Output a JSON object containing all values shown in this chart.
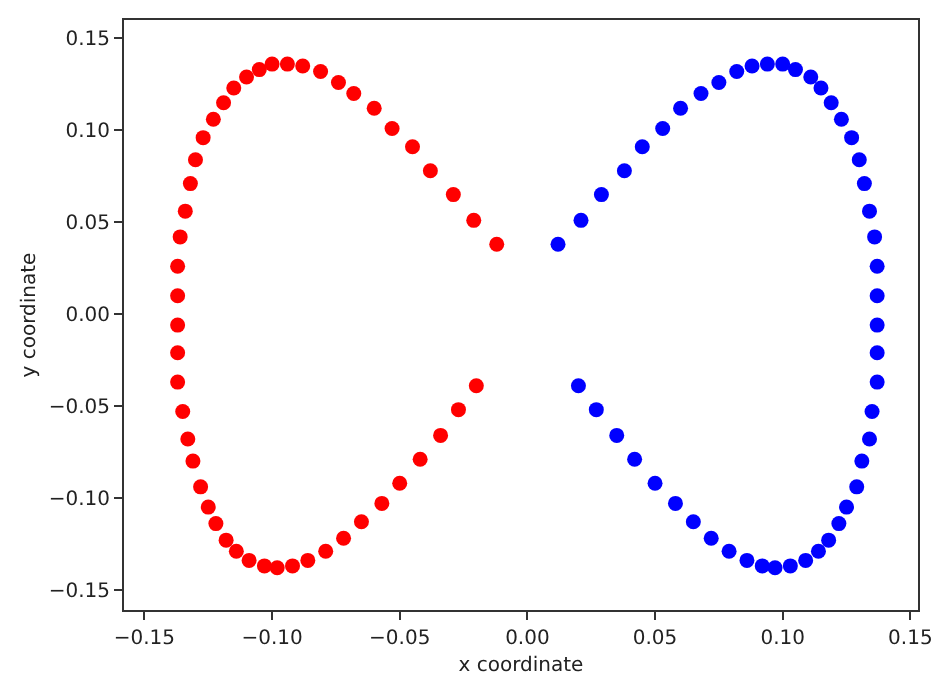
{
  "chart_data": {
    "type": "scatter",
    "xlabel": "x coordinate",
    "ylabel": "y coordinate",
    "marker": "circle",
    "xlim": [
      -0.158,
      0.153
    ],
    "ylim": [
      -0.161,
      0.16
    ],
    "xticks": [
      {
        "value": -0.15,
        "label": "−0.15"
      },
      {
        "value": -0.1,
        "label": "−0.10"
      },
      {
        "value": -0.05,
        "label": "−0.05"
      },
      {
        "value": 0,
        "label": "0.00"
      },
      {
        "value": 0.05,
        "label": "0.05"
      },
      {
        "value": 0.1,
        "label": "0.10"
      },
      {
        "value": 0.15,
        "label": "0.15"
      }
    ],
    "yticks": [
      {
        "value": -0.15,
        "label": "−0.15"
      },
      {
        "value": -0.1,
        "label": "−0.10"
      },
      {
        "value": -0.05,
        "label": "−0.05"
      },
      {
        "value": 0,
        "label": "0.00"
      },
      {
        "value": 0.05,
        "label": "0.05"
      },
      {
        "value": 0.1,
        "label": "0.10"
      },
      {
        "value": 0.15,
        "label": "0.15"
      }
    ],
    "series": [
      {
        "color": "#ff0000",
        "x": [
          -0.012,
          -0.021,
          -0.029,
          -0.038,
          -0.045,
          -0.053,
          -0.06,
          -0.068,
          -0.074,
          -0.081,
          -0.088,
          -0.094,
          -0.1,
          -0.105,
          -0.11,
          -0.115,
          -0.119,
          -0.123,
          -0.127,
          -0.13,
          -0.132,
          -0.134,
          -0.136,
          -0.137,
          -0.137,
          -0.137,
          -0.137,
          -0.137,
          -0.135,
          -0.133,
          -0.131,
          -0.128,
          -0.125,
          -0.122,
          -0.118,
          -0.114,
          -0.109,
          -0.103,
          -0.098,
          -0.092,
          -0.086,
          -0.079,
          -0.072,
          -0.065,
          -0.057,
          -0.05,
          -0.042,
          -0.034,
          -0.027,
          -0.02
        ],
        "values": [
          0.038,
          0.051,
          0.065,
          0.078,
          0.091,
          0.101,
          0.112,
          0.12,
          0.126,
          0.132,
          0.135,
          0.136,
          0.136,
          0.133,
          0.129,
          0.123,
          0.115,
          0.106,
          0.096,
          0.084,
          0.071,
          0.056,
          0.042,
          0.026,
          0.01,
          -0.006,
          -0.021,
          -0.037,
          -0.053,
          -0.068,
          -0.08,
          -0.094,
          -0.105,
          -0.114,
          -0.123,
          -0.129,
          -0.134,
          -0.137,
          -0.138,
          -0.137,
          -0.134,
          -0.129,
          -0.122,
          -0.113,
          -0.103,
          -0.092,
          -0.079,
          -0.066,
          -0.052,
          -0.039
        ]
      },
      {
        "color": "#0000ff",
        "x": [
          0.012,
          0.021,
          0.029,
          0.038,
          0.045,
          0.053,
          0.06,
          0.068,
          0.075,
          0.082,
          0.088,
          0.094,
          0.1,
          0.105,
          0.111,
          0.115,
          0.119,
          0.123,
          0.127,
          0.13,
          0.132,
          0.134,
          0.136,
          0.137,
          0.137,
          0.137,
          0.137,
          0.137,
          0.135,
          0.134,
          0.131,
          0.129,
          0.125,
          0.122,
          0.118,
          0.114,
          0.109,
          0.103,
          0.097,
          0.092,
          0.086,
          0.079,
          0.072,
          0.065,
          0.058,
          0.05,
          0.042,
          0.035,
          0.027,
          0.02
        ],
        "values": [
          0.038,
          0.051,
          0.065,
          0.078,
          0.091,
          0.101,
          0.112,
          0.12,
          0.126,
          0.132,
          0.135,
          0.136,
          0.136,
          0.133,
          0.129,
          0.123,
          0.115,
          0.106,
          0.096,
          0.084,
          0.071,
          0.056,
          0.042,
          0.026,
          0.01,
          -0.006,
          -0.021,
          -0.037,
          -0.053,
          -0.068,
          -0.08,
          -0.094,
          -0.105,
          -0.114,
          -0.123,
          -0.129,
          -0.134,
          -0.137,
          -0.138,
          -0.137,
          -0.134,
          -0.129,
          -0.122,
          -0.113,
          -0.103,
          -0.092,
          -0.079,
          -0.066,
          -0.052,
          -0.039
        ]
      }
    ]
  }
}
